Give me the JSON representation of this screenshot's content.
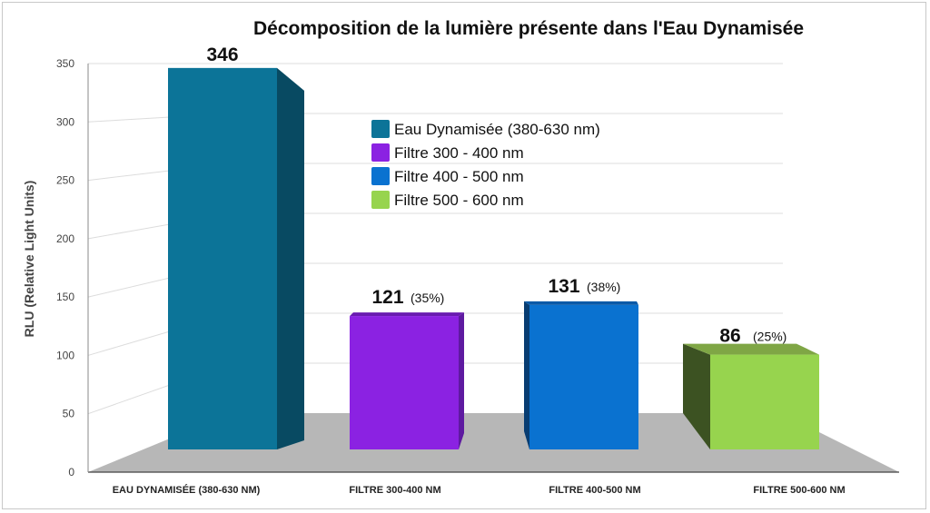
{
  "chart_data": {
    "type": "bar",
    "title": "Décomposition de la lumière présente dans l'Eau Dynamisée",
    "ylabel": "RLU (Relative Light Units)",
    "xlabel": "",
    "ylim": [
      0,
      350
    ],
    "yticks": [
      "0",
      "50",
      "100",
      "150",
      "200",
      "250",
      "300",
      "350"
    ],
    "grid": true,
    "legend_position": "top-center",
    "categories": [
      "EAU DYNAMISÉE (380-630 NM)",
      "FILTRE 300-400 NM",
      "FILTRE 400-500 NM",
      "FILTRE 500-600 NM"
    ],
    "values": [
      346,
      121,
      131,
      86
    ],
    "value_labels": [
      "346",
      "121",
      "131",
      "86"
    ],
    "percent_labels": [
      "",
      "(35%)",
      "(38%)",
      "(25%)"
    ],
    "legend": [
      "Eau Dynamisée (380-630 nm)",
      "Filtre 300 - 400 nm",
      "Filtre 400 - 500 nm",
      "Filtre 500 - 600 nm"
    ],
    "colors": [
      "#0c7498",
      "#8b22e2",
      "#0a72d0",
      "#97d44e"
    ],
    "side_colors": [
      "#084a62",
      "#5e1aa0",
      "#083d72",
      "#3c5222"
    ],
    "top_colors": [
      "#0a6488",
      "#6a1bb0",
      "#0a5aa8",
      "#7fa645"
    ]
  }
}
